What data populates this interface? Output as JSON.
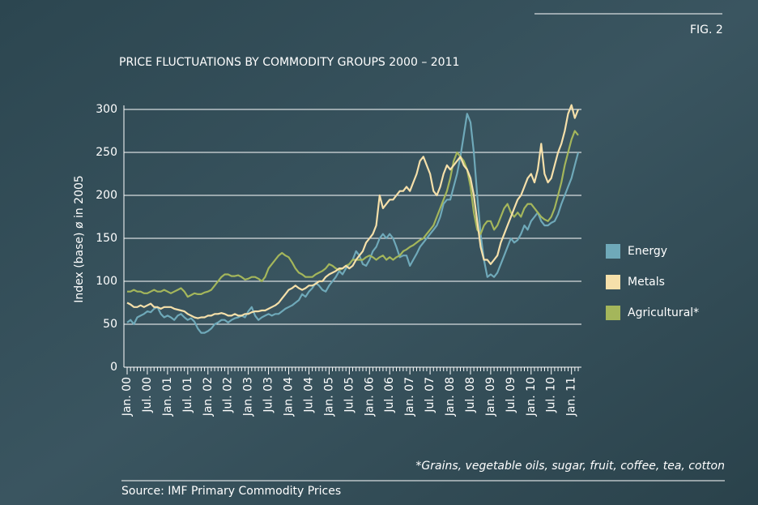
{
  "fig_label": "FIG. 2",
  "footnote": "*Grains, vegetable oils, sugar, fruit, coffee, tea, cotton",
  "source": "Source: IMF Primary Commodity Prices",
  "chart_data": {
    "type": "line",
    "title": "PRICE FLUCTUATIONS BY COMMODITY GROUPS 2000 – 2011",
    "y_label": "Index (base) ø in 2005",
    "categories": [
      "Jan. 00",
      null,
      null,
      null,
      null,
      null,
      "Jul. 00",
      null,
      null,
      null,
      null,
      null,
      "Jan. 01",
      null,
      null,
      null,
      null,
      null,
      "Jul. 01",
      null,
      null,
      null,
      null,
      null,
      "Jan. 02",
      null,
      null,
      null,
      null,
      null,
      "Jul. 02",
      null,
      null,
      null,
      null,
      null,
      "Jan. 03",
      null,
      null,
      null,
      null,
      null,
      "Jul. 03",
      null,
      null,
      null,
      null,
      null,
      "Jan. 04",
      null,
      null,
      null,
      null,
      null,
      "Jul. 04",
      null,
      null,
      null,
      null,
      null,
      "Jan. 05",
      null,
      null,
      null,
      null,
      null,
      "Jul. 05",
      null,
      null,
      null,
      null,
      null,
      "Jan. 06",
      null,
      null,
      null,
      null,
      null,
      "Jul. 06",
      null,
      null,
      null,
      null,
      null,
      "Jan. 07",
      null,
      null,
      null,
      null,
      null,
      "Jul. 07",
      null,
      null,
      null,
      null,
      null,
      "Jan. 08",
      null,
      null,
      null,
      null,
      null,
      "Jul. 08",
      null,
      null,
      null,
      null,
      null,
      "Jan. 09",
      null,
      null,
      null,
      null,
      null,
      "Jul. 09",
      null,
      null,
      null,
      null,
      null,
      "Jan. 10",
      null,
      null,
      null,
      null,
      null,
      "Jul. 10",
      null,
      null,
      null,
      null,
      null,
      "Jan. 11",
      null,
      null
    ],
    "series": [
      {
        "name": "Energy",
        "color": "#6fa9b9",
        "values": [
          52,
          55,
          50,
          58,
          60,
          62,
          65,
          64,
          68,
          70,
          62,
          58,
          60,
          58,
          55,
          60,
          62,
          58,
          55,
          57,
          53,
          45,
          40,
          40,
          42,
          45,
          50,
          52,
          55,
          55,
          52,
          55,
          57,
          58,
          60,
          58,
          65,
          70,
          60,
          55,
          58,
          60,
          62,
          60,
          62,
          62,
          65,
          68,
          70,
          72,
          75,
          78,
          85,
          82,
          88,
          92,
          98,
          95,
          90,
          88,
          95,
          100,
          105,
          112,
          108,
          115,
          120,
          125,
          135,
          130,
          120,
          118,
          125,
          135,
          140,
          150,
          155,
          150,
          155,
          150,
          140,
          128,
          130,
          130,
          118,
          125,
          132,
          140,
          145,
          150,
          155,
          160,
          165,
          175,
          190,
          195,
          195,
          210,
          225,
          245,
          270,
          295,
          285,
          250,
          200,
          155,
          125,
          105,
          108,
          105,
          110,
          120,
          130,
          140,
          150,
          145,
          148,
          155,
          165,
          160,
          170,
          175,
          180,
          170,
          165,
          165,
          168,
          170,
          178,
          190,
          200,
          210,
          220,
          235,
          250
        ]
      },
      {
        "name": "Metals",
        "color": "#f6e0aa",
        "values": [
          75,
          73,
          70,
          70,
          72,
          70,
          72,
          74,
          70,
          70,
          68,
          70,
          70,
          70,
          68,
          67,
          66,
          65,
          62,
          60,
          58,
          57,
          58,
          58,
          60,
          60,
          62,
          62,
          63,
          62,
          60,
          60,
          62,
          60,
          60,
          62,
          62,
          64,
          65,
          65,
          66,
          66,
          68,
          70,
          72,
          75,
          80,
          85,
          90,
          92,
          95,
          92,
          90,
          92,
          95,
          95,
          97,
          100,
          100,
          105,
          108,
          110,
          112,
          115,
          115,
          118,
          115,
          118,
          125,
          130,
          135,
          145,
          150,
          155,
          165,
          200,
          185,
          190,
          195,
          195,
          200,
          205,
          205,
          210,
          205,
          215,
          225,
          240,
          245,
          235,
          225,
          205,
          200,
          210,
          225,
          235,
          230,
          235,
          240,
          245,
          235,
          230,
          220,
          200,
          170,
          140,
          125,
          125,
          120,
          125,
          130,
          145,
          155,
          165,
          175,
          185,
          195,
          200,
          210,
          220,
          225,
          215,
          230,
          260,
          225,
          215,
          220,
          235,
          250,
          260,
          275,
          295,
          305,
          290,
          300
        ]
      },
      {
        "name": "Agricultural*",
        "color": "#a4b65b",
        "values": [
          88,
          88,
          90,
          88,
          88,
          86,
          86,
          88,
          90,
          88,
          88,
          90,
          88,
          86,
          88,
          90,
          92,
          88,
          82,
          84,
          86,
          85,
          85,
          87,
          88,
          90,
          95,
          100,
          105,
          108,
          108,
          106,
          106,
          107,
          105,
          102,
          103,
          105,
          105,
          103,
          100,
          105,
          115,
          120,
          125,
          130,
          133,
          130,
          128,
          122,
          115,
          110,
          108,
          105,
          105,
          105,
          108,
          110,
          112,
          115,
          120,
          118,
          115,
          113,
          115,
          118,
          120,
          125,
          125,
          125,
          125,
          128,
          130,
          128,
          125,
          128,
          130,
          125,
          128,
          125,
          128,
          130,
          135,
          137,
          140,
          142,
          145,
          148,
          150,
          155,
          160,
          165,
          175,
          185,
          195,
          205,
          220,
          240,
          250,
          245,
          240,
          230,
          210,
          180,
          160,
          155,
          165,
          170,
          170,
          160,
          165,
          175,
          185,
          190,
          180,
          175,
          180,
          175,
          185,
          190,
          190,
          185,
          180,
          175,
          172,
          170,
          175,
          185,
          200,
          215,
          235,
          250,
          265,
          275,
          270
        ]
      }
    ],
    "ylim": [
      0,
      300
    ],
    "yticks": [
      0,
      50,
      100,
      150,
      200,
      250,
      300
    ],
    "grid": true
  }
}
